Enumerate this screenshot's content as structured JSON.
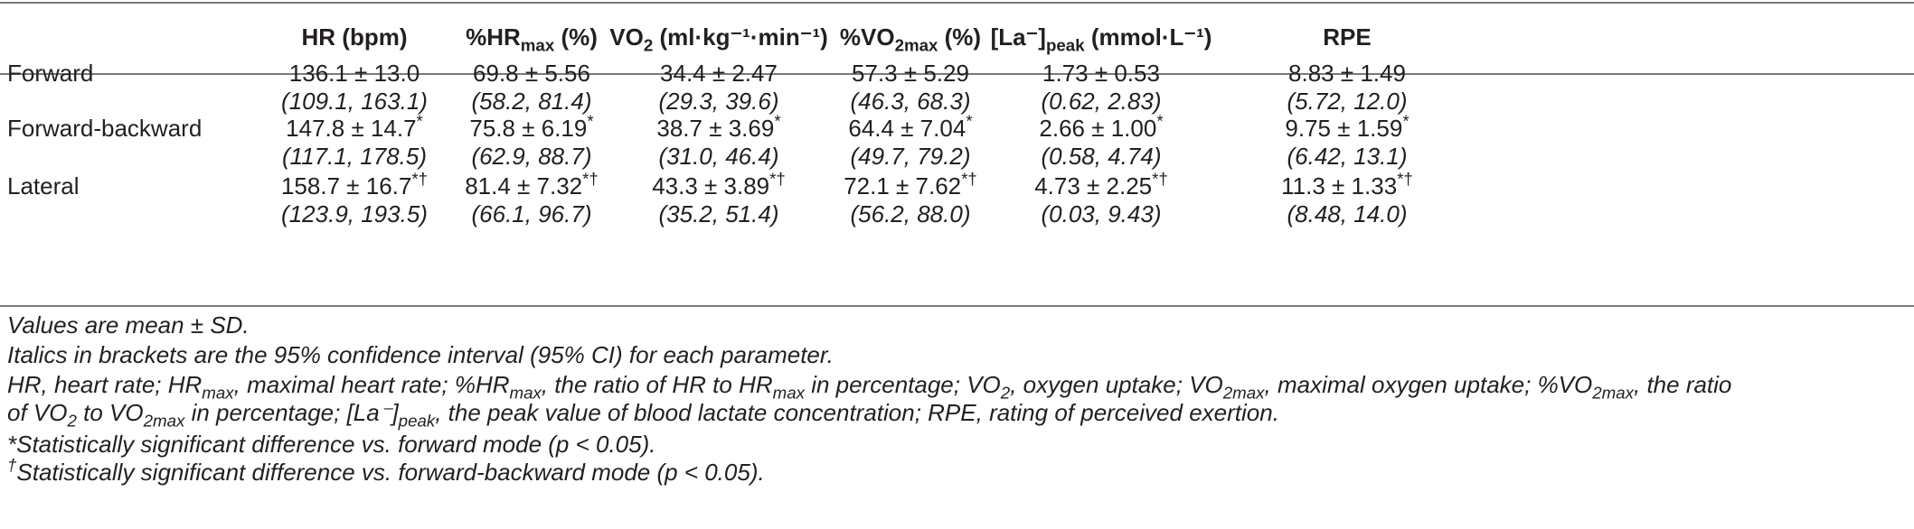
{
  "table": {
    "columns": [
      {
        "pre": "HR (bpm)",
        "sub": "",
        "sup": "",
        "post": ""
      },
      {
        "pre": "%HR",
        "sub": "max",
        "sup": "",
        "post": " (%)"
      },
      {
        "pre": "VO",
        "sub": "2",
        "sup": "",
        "post": " (ml·kg⁻¹·min⁻¹)"
      },
      {
        "pre": "%VO",
        "sub": "2max",
        "sup": "",
        "post": " (%)"
      },
      {
        "pre": "[La⁻]",
        "sub": "peak",
        "sup": "",
        "post": " (mmol·L⁻¹)"
      },
      {
        "pre": "RPE",
        "sub": "",
        "sup": "",
        "post": ""
      }
    ],
    "rows": [
      {
        "label": "Forward",
        "values": [
          "136.1 ± 13.0",
          "69.8 ± 5.56",
          "34.4 ± 2.47",
          "57.3 ± 5.29",
          "1.73 ± 0.53",
          "8.83 ± 1.49"
        ],
        "marks": [
          "",
          "",
          "",
          "",
          "",
          ""
        ],
        "ci": [
          "(109.1, 163.1)",
          "(58.2, 81.4)",
          "(29.3, 39.6)",
          "(46.3, 68.3)",
          "(0.62, 2.83)",
          "(5.72, 12.0)"
        ]
      },
      {
        "label": "Forward-backward",
        "values": [
          "147.8 ± 14.7",
          "75.8 ± 6.19",
          "38.7 ± 3.69",
          "64.4 ± 7.04",
          "2.66 ± 1.00",
          "9.75 ± 1.59"
        ],
        "marks": [
          "*",
          "*",
          "*",
          "*",
          "*",
          "*"
        ],
        "ci": [
          "(117.1, 178.5)",
          "(62.9, 88.7)",
          "(31.0, 46.4)",
          "(49.7, 79.2)",
          "(0.58, 4.74)",
          "(6.42, 13.1)"
        ]
      },
      {
        "label": "Lateral",
        "values": [
          "158.7 ± 16.7",
          "81.4 ± 7.32",
          "43.3 ± 3.89",
          "72.1 ± 7.62",
          "4.73 ± 2.25",
          "11.3 ± 1.33"
        ],
        "marks": [
          "*†",
          "*†",
          "*†",
          "*†",
          "*†",
          "*†"
        ],
        "ci": [
          "(123.9, 193.5)",
          "(66.1, 96.7)",
          "(35.2, 51.4)",
          "(56.2, 88.0)",
          "(0.03, 9.43)",
          "(8.48, 14.0)"
        ]
      }
    ]
  },
  "footnotes": [
    [
      {
        "t": "Values are mean ± SD."
      }
    ],
    [
      {
        "t": "Italics in brackets are the 95% confidence interval (95% CI) for each parameter."
      }
    ],
    [
      {
        "t": "HR, heart rate; HR"
      },
      {
        "sub": "max"
      },
      {
        "t": ", maximal heart rate; %HR"
      },
      {
        "sub": "max"
      },
      {
        "t": ", the ratio of HR to HR"
      },
      {
        "sub": "max"
      },
      {
        "t": " in percentage; VO"
      },
      {
        "sub": "2"
      },
      {
        "t": ", oxygen uptake; VO"
      },
      {
        "sub": "2max"
      },
      {
        "t": ", maximal oxygen uptake; %VO"
      },
      {
        "sub": "2max"
      },
      {
        "t": ", the ratio"
      }
    ],
    [
      {
        "t": "of VO"
      },
      {
        "sub": "2"
      },
      {
        "t": " to VO"
      },
      {
        "sub": "2max"
      },
      {
        "t": " in percentage; [La⁻]"
      },
      {
        "sub": "peak"
      },
      {
        "t": ", the peak value of blood lactate concentration; RPE, rating of perceived exertion."
      }
    ],
    [
      {
        "t": "*Statistically significant difference vs. forward mode (p < 0.05)."
      }
    ],
    [
      {
        "sup": "†"
      },
      {
        "t": "Statistically significant difference vs. forward-backward mode (p < 0.05)."
      }
    ]
  ]
}
